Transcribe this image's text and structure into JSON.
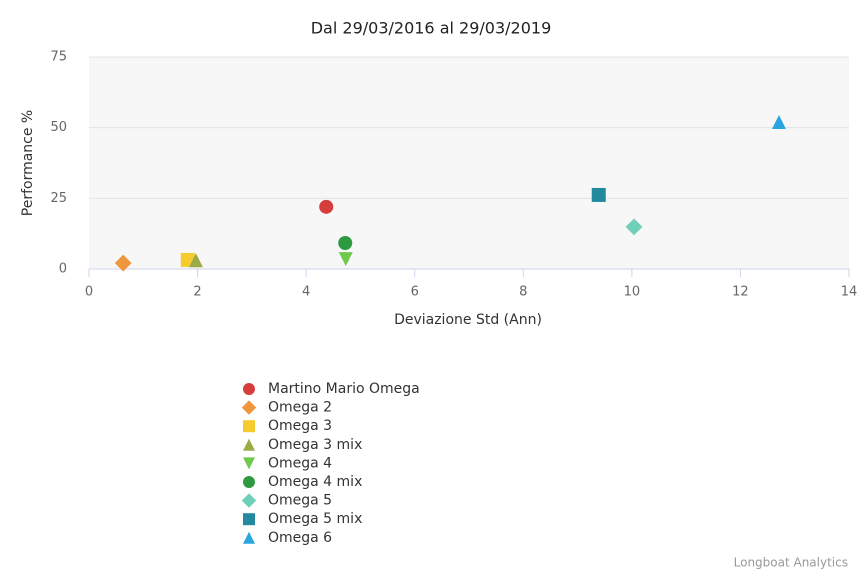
{
  "chart_data": {
    "type": "scatter",
    "title": "Dal 29/03/2016 al 29/03/2019",
    "x_label": "Deviazione Std (Ann)",
    "y_label": "Performance %",
    "xlim": [
      0,
      14
    ],
    "xticks": [
      0,
      2,
      4,
      6,
      8,
      10,
      12,
      14
    ],
    "ylim": [
      0,
      75
    ],
    "yticks": [
      0,
      25,
      50,
      75
    ],
    "grid": true,
    "legend": "bottom",
    "credit": "Longboat Analytics",
    "series": [
      {
        "name": "Martino Mario Omega",
        "color": "#d63d3d",
        "symbol": "circle",
        "x": [
          4.37
        ],
        "values": [
          22
        ]
      },
      {
        "name": "Omega 2",
        "color": "#f0963c",
        "symbol": "diamond",
        "x": [
          0.63
        ],
        "values": [
          2.1
        ]
      },
      {
        "name": "Omega 3",
        "color": "#f5cb2e",
        "symbol": "square",
        "x": [
          1.82
        ],
        "values": [
          3.2
        ]
      },
      {
        "name": "Omega 3 mix",
        "color": "#9cab45",
        "symbol": "triangle",
        "x": [
          1.97
        ],
        "values": [
          3.1
        ]
      },
      {
        "name": "Omega 4",
        "color": "#6fca4b",
        "symbol": "triangle-down",
        "x": [
          4.73
        ],
        "values": [
          3.5
        ]
      },
      {
        "name": "Omega 4 mix",
        "color": "#2e9a3f",
        "symbol": "circle",
        "x": [
          4.72
        ],
        "values": [
          9.2
        ]
      },
      {
        "name": "Omega 5",
        "color": "#6fcfb9",
        "symbol": "diamond",
        "x": [
          10.04
        ],
        "values": [
          14.9
        ]
      },
      {
        "name": "Omega 5 mix",
        "color": "#23899e",
        "symbol": "square",
        "x": [
          9.39
        ],
        "values": [
          26.2
        ]
      },
      {
        "name": "Omega 6",
        "color": "#2aa5e0",
        "symbol": "triangle",
        "x": [
          12.71
        ],
        "values": [
          52
        ]
      }
    ]
  }
}
